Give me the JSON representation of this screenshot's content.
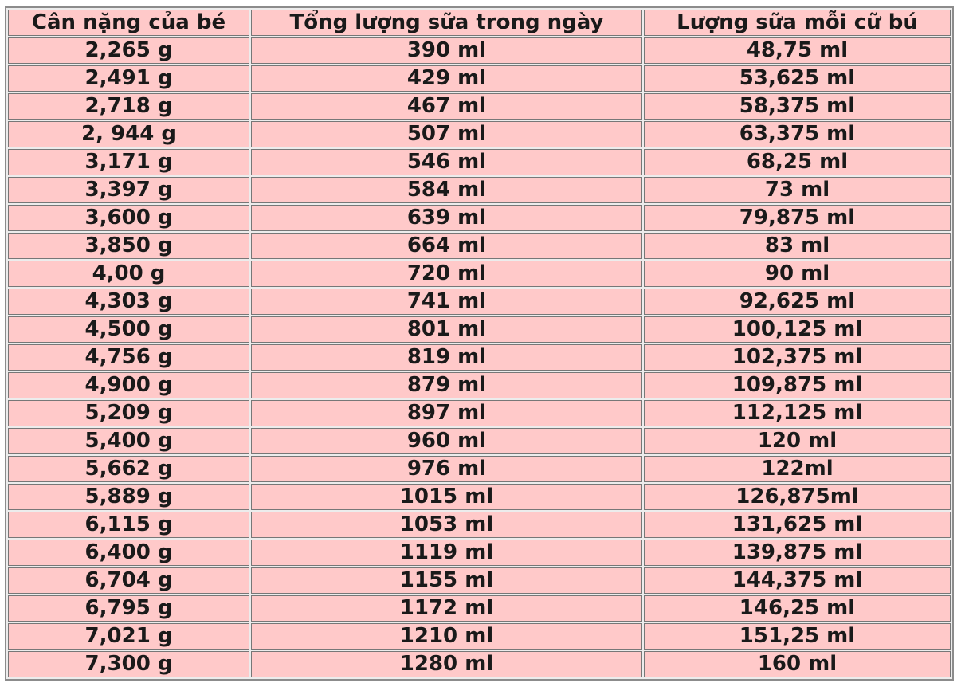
{
  "table": {
    "headers": [
      "Cân nặng của bé",
      "Tổng lượng sữa trong ngày",
      "Lượng sữa mỗi cữ bú"
    ],
    "rows": [
      [
        "2,265 g",
        "390 ml",
        "48,75 ml"
      ],
      [
        "2,491 g",
        "429 ml",
        "53,625 ml"
      ],
      [
        "2,718 g",
        "467 ml",
        "58,375 ml"
      ],
      [
        "2, 944 g",
        "507 ml",
        "63,375 ml"
      ],
      [
        "3,171 g",
        "546 ml",
        "68,25 ml"
      ],
      [
        "3,397 g",
        "584 ml",
        "73 ml"
      ],
      [
        "3,600 g",
        "639 ml",
        "79,875 ml"
      ],
      [
        "3,850 g",
        "664 ml",
        "83 ml"
      ],
      [
        "4,00 g",
        "720 ml",
        "90 ml"
      ],
      [
        "4,303 g",
        "741 ml",
        "92,625 ml"
      ],
      [
        "4,500 g",
        "801 ml",
        "100,125 ml"
      ],
      [
        "4,756 g",
        "819 ml",
        "102,375 ml"
      ],
      [
        "4,900 g",
        "879 ml",
        "109,875 ml"
      ],
      [
        "5,209 g",
        "897 ml",
        "112,125 ml"
      ],
      [
        "5,400 g",
        "960 ml",
        "120 ml"
      ],
      [
        "5,662 g",
        "976 ml",
        "122ml"
      ],
      [
        "5,889 g",
        "1015 ml",
        "126,875ml"
      ],
      [
        "6,115 g",
        "1053 ml",
        "131,625 ml"
      ],
      [
        "6,400 g",
        "1119 ml",
        "139,875 ml"
      ],
      [
        "6,704 g",
        "1155 ml",
        "144,375 ml"
      ],
      [
        "6,795 g",
        "1172 ml",
        "146,25 ml"
      ],
      [
        "7,021 g",
        "1210 ml",
        "151,25 ml"
      ],
      [
        "7,300 g",
        "1280 ml",
        "160 ml"
      ]
    ]
  },
  "colors": {
    "cell_background": "#ffc9c9",
    "border": "#777777",
    "text": "#1a1a1a"
  }
}
